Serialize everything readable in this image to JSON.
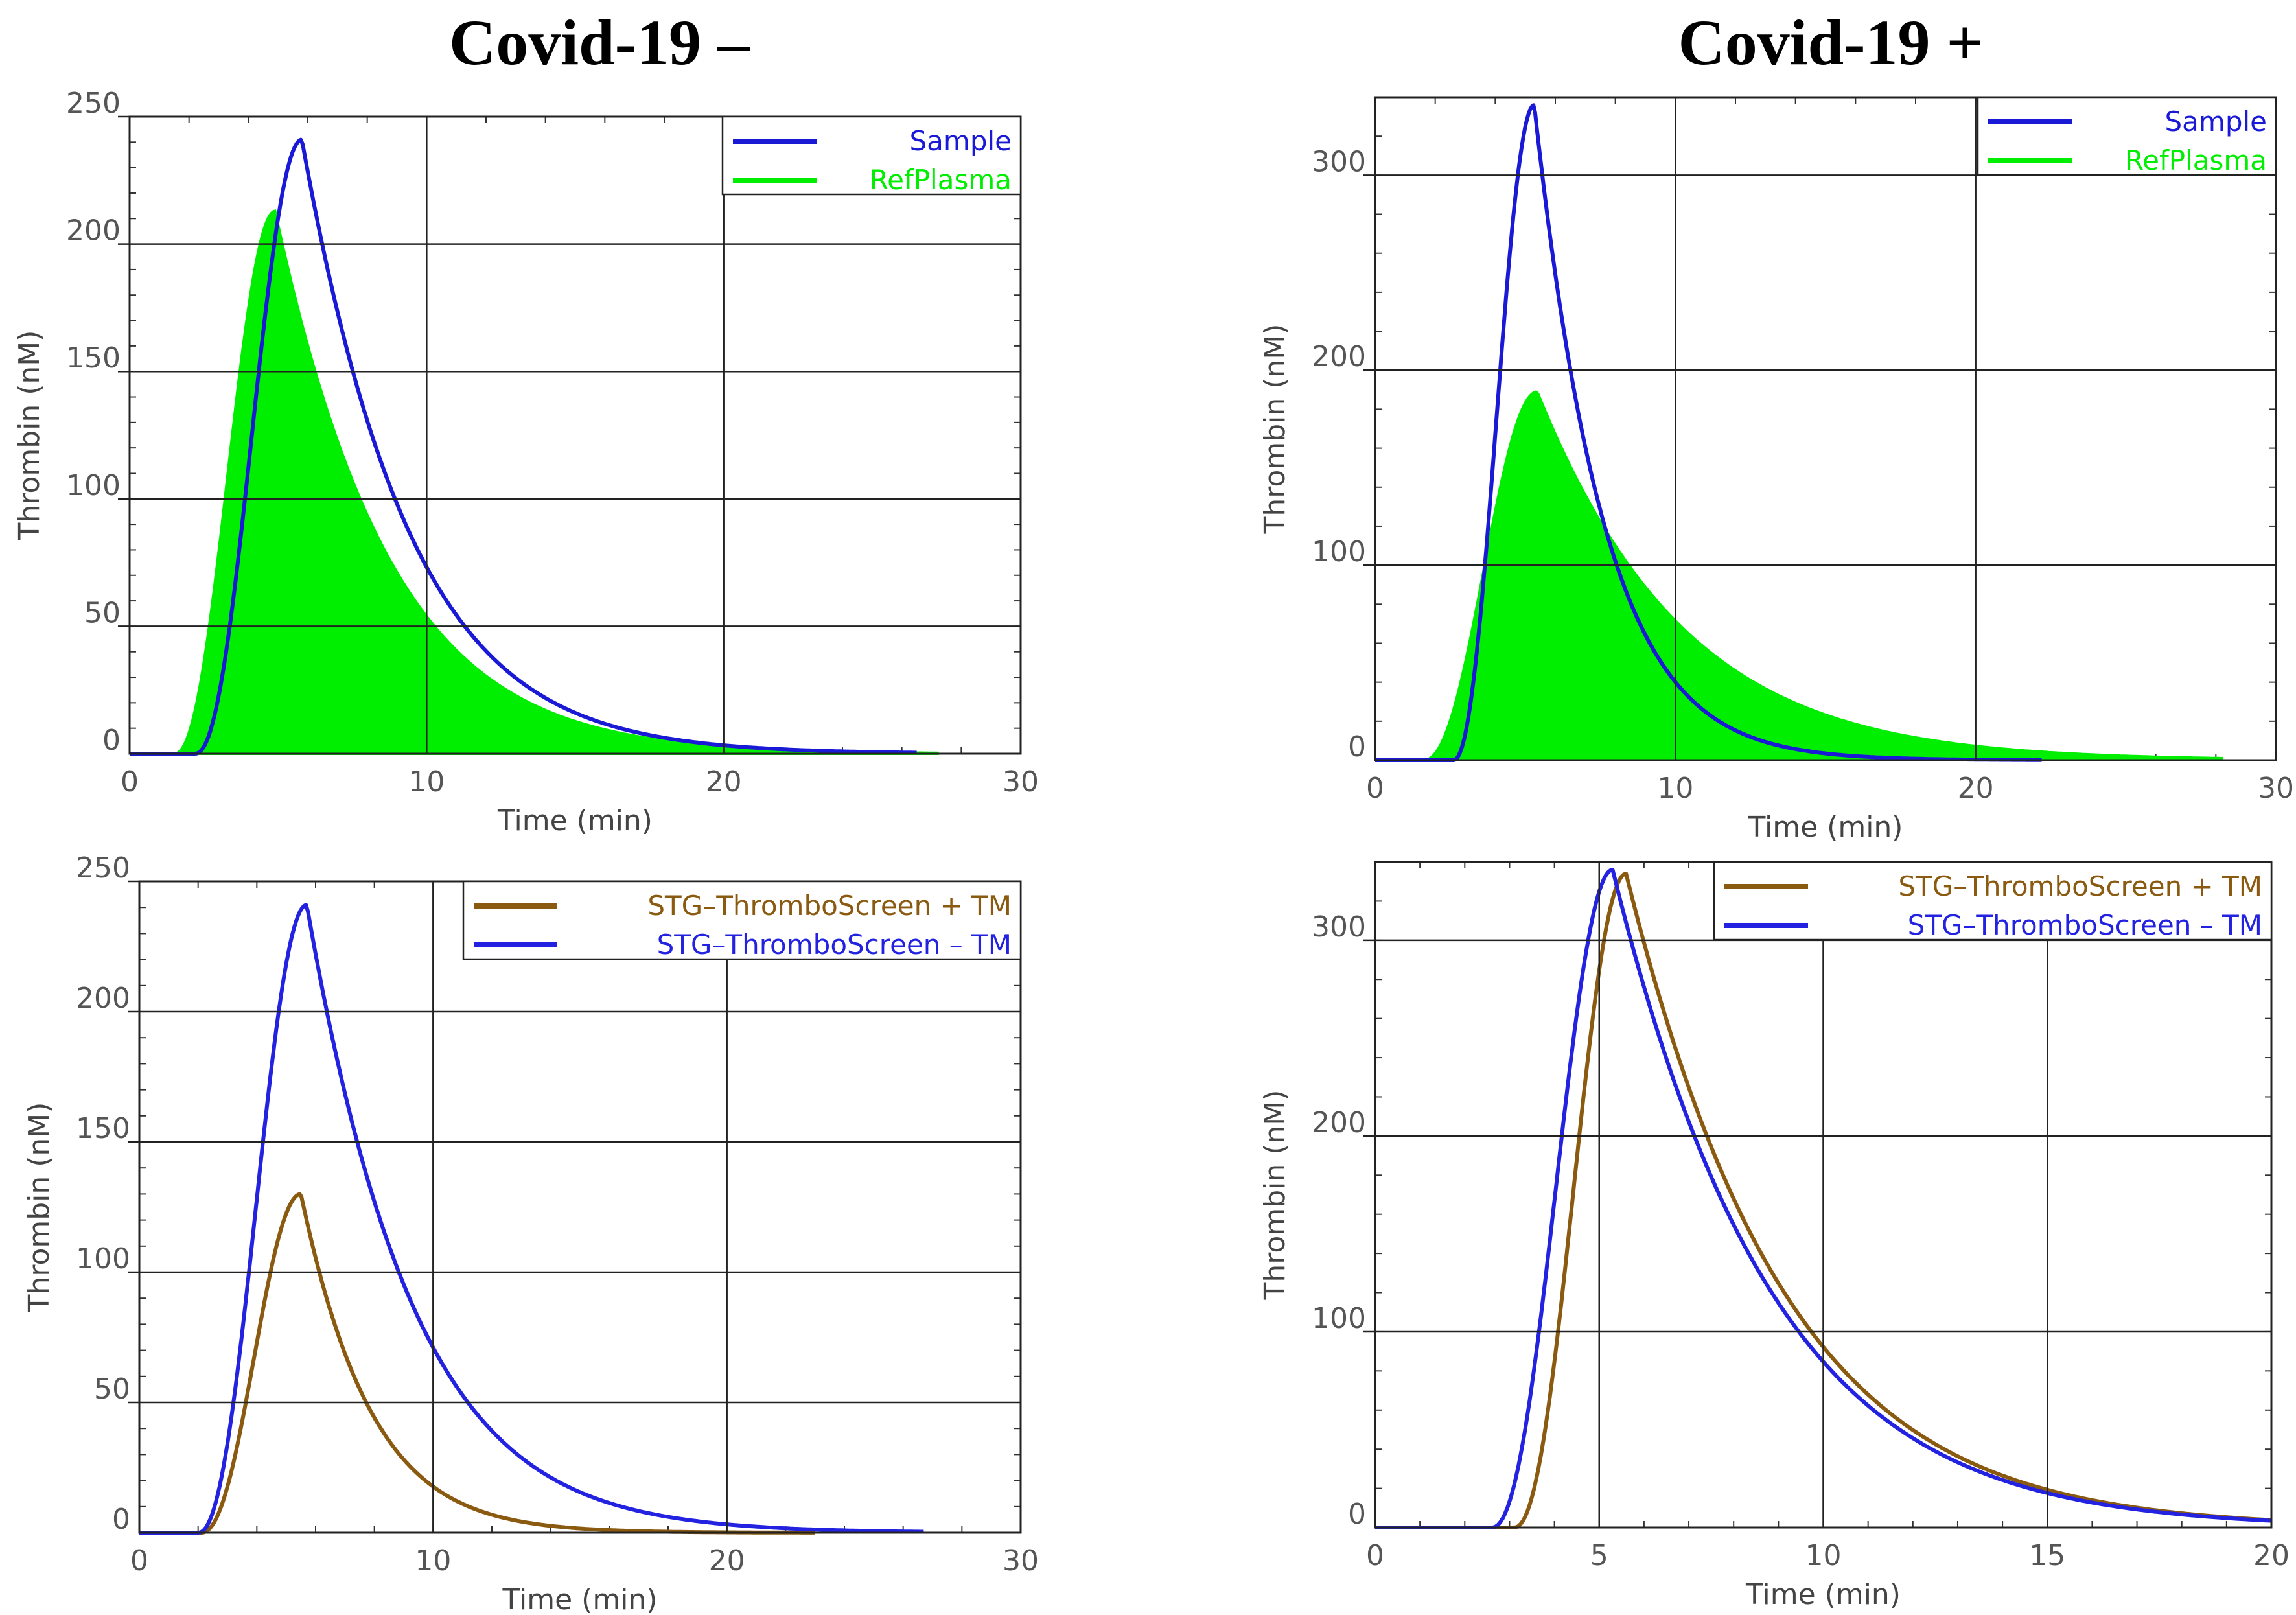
{
  "titles": {
    "left": "Covid-19 –",
    "right": "Covid-19 +"
  },
  "colors": {
    "sample": "#1a1ad6",
    "refplasma": "#00ee00",
    "stg_plus_tm": "#8a5a10",
    "stg_minus_tm": "#2222e0",
    "grid": "#222222"
  },
  "chart_data": [
    {
      "id": "neg-top",
      "type": "area",
      "xlabel": "Time (min)",
      "ylabel": "Thrombin (nM)",
      "xlim": [
        0,
        30
      ],
      "ylim": [
        0,
        250
      ],
      "xticks": [
        0,
        10,
        20,
        30
      ],
      "yticks": [
        0,
        50,
        100,
        150,
        200,
        250
      ],
      "grid": true,
      "legend": "top-right",
      "series": [
        {
          "name": "Sample",
          "style": "line",
          "color": "#1a1ad6",
          "peak": 241,
          "ttp": 5.8,
          "lag": 2.2,
          "end": 26.5,
          "k": 0.36
        },
        {
          "name": "RefPlasma",
          "style": "fill",
          "color": "#00ee00",
          "peak": 213,
          "ttp": 4.9,
          "lag": 1.5,
          "end": 27.2,
          "k": 0.34
        }
      ]
    },
    {
      "id": "pos-top",
      "type": "area",
      "xlabel": "Time (min)",
      "ylabel": "Thrombin (nM)",
      "xlim": [
        0,
        30
      ],
      "ylim": [
        0,
        340
      ],
      "xticks": [
        0,
        10,
        20,
        30
      ],
      "yticks": [
        0,
        100,
        200,
        300
      ],
      "grid": true,
      "legend": "top-right",
      "series": [
        {
          "name": "Sample",
          "style": "line",
          "color": "#1a1ad6",
          "peak": 336,
          "ttp": 5.3,
          "lag": 2.6,
          "end": 22.2,
          "k": 0.56
        },
        {
          "name": "RefPlasma",
          "style": "fill",
          "color": "#00ee00",
          "peak": 189,
          "ttp": 5.4,
          "lag": 1.6,
          "end": 28.2,
          "k": 0.27
        }
      ]
    },
    {
      "id": "neg-bottom",
      "type": "line",
      "xlabel": "Time (min)",
      "ylabel": "Thrombin (nM)",
      "xlim": [
        0,
        30
      ],
      "ylim": [
        0,
        250
      ],
      "xticks": [
        0,
        10,
        20,
        30
      ],
      "yticks": [
        0,
        50,
        100,
        150,
        200,
        250
      ],
      "grid": true,
      "legend": "top-right",
      "series": [
        {
          "name": "STG–ThromboScreen + TM",
          "style": "line",
          "color": "#8a5a10",
          "peak": 130,
          "ttp": 5.5,
          "lag": 2.1,
          "end": 23.0,
          "k": 0.55
        },
        {
          "name": "STG–ThromboScreen – TM",
          "style": "line",
          "color": "#2222e0",
          "peak": 241,
          "ttp": 5.7,
          "lag": 2.0,
          "end": 26.7,
          "k": 0.36
        }
      ]
    },
    {
      "id": "pos-bottom",
      "type": "line",
      "xlabel": "Time (min)",
      "ylabel": "Thrombin (nM)",
      "xlim": [
        0,
        20
      ],
      "ylim": [
        0,
        340
      ],
      "xticks": [
        0,
        5,
        10,
        15,
        20
      ],
      "yticks": [
        0,
        100,
        200,
        300
      ],
      "grid": true,
      "legend": "top-right",
      "series": [
        {
          "name": "STG–ThromboScreen + TM",
          "style": "line",
          "color": "#8a5a10",
          "peak": 334,
          "ttp": 5.6,
          "lag": 3.1,
          "end": 20.0,
          "k": 0.37
        },
        {
          "name": "STG–ThromboScreen – TM",
          "style": "line",
          "color": "#2222e0",
          "peak": 336,
          "ttp": 5.3,
          "lag": 2.6,
          "end": 20.0,
          "k": 0.37
        }
      ]
    }
  ]
}
